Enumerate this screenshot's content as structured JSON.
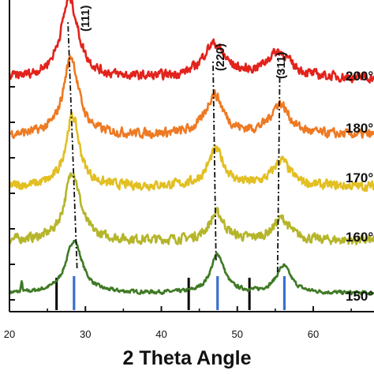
{
  "chart_data": {
    "type": "line",
    "title": "",
    "xlabel": "2 Theta Angle",
    "ylabel": "",
    "xlim": [
      20,
      68
    ],
    "x_ticks": [
      20,
      30,
      40,
      50,
      60
    ],
    "y_ticks_count": 7,
    "grid": false,
    "legend": "none",
    "peak_labels": [
      {
        "label": "(111)",
        "x": 28.0
      },
      {
        "label": "(220)",
        "x": 47.0
      },
      {
        "label": "(311)",
        "x": 55.5
      }
    ],
    "reference_lines": {
      "black": [
        26.2,
        43.6,
        51.6
      ],
      "blue": [
        28.5,
        47.4,
        56.2
      ]
    },
    "series": [
      {
        "name": "150°",
        "color": "#3f7a25",
        "offset": 0.0,
        "height_111": 2.05,
        "height_220": 1.5,
        "height_311": 1.05,
        "peak_111": 28.5,
        "peak_220": 47.4,
        "peak_311": 56.1,
        "width_111": 1.3,
        "width_220": 1.1,
        "width_311": 1.2,
        "spike": [
          21.6,
          0.35
        ]
      },
      {
        "name": "160°",
        "color": "#b5b52a",
        "offset": 2.05,
        "height_111": 2.7,
        "height_220": 1.05,
        "height_311": 0.85,
        "peak_111": 28.3,
        "peak_220": 47.3,
        "peak_311": 55.8,
        "width_111": 1.2,
        "width_220": 1.2,
        "width_311": 1.3
      },
      {
        "name": "170°",
        "color": "#e2bf22",
        "offset": 4.15,
        "height_111": 2.75,
        "height_220": 1.4,
        "height_311": 1.0,
        "peak_111": 28.3,
        "peak_220": 47.2,
        "peak_311": 55.8,
        "width_111": 1.1,
        "width_220": 1.3,
        "width_311": 1.4
      },
      {
        "name": "180°",
        "color": "#ee7a24",
        "offset": 6.15,
        "height_111": 3.05,
        "height_220": 1.55,
        "height_311": 1.2,
        "peak_111": 28.1,
        "peak_220": 47.0,
        "peak_311": 55.6,
        "width_111": 1.2,
        "width_220": 1.4,
        "width_311": 1.5
      },
      {
        "name": "200°",
        "color": "#e2231c",
        "offset": 8.35,
        "height_111": 3.1,
        "height_220": 1.3,
        "height_311": 1.0,
        "peak_111": 27.9,
        "peak_220": 46.9,
        "peak_311": 55.4,
        "width_111": 1.4,
        "width_220": 1.8,
        "width_311": 2.0
      }
    ]
  }
}
